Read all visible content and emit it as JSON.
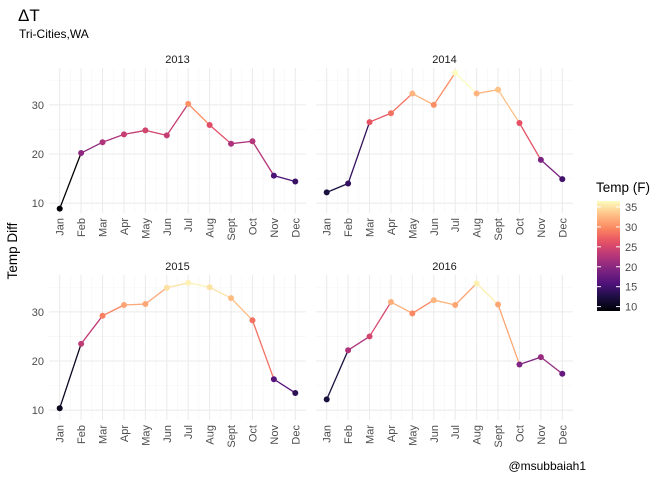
{
  "chart_data": {
    "type": "line",
    "title": "ΔT",
    "subtitle": "Tri-Cities,WA",
    "xlabel": "",
    "ylabel": "Temp Diff",
    "caption": "@msubbaiah1",
    "categories": [
      "Jan",
      "Feb",
      "Mar",
      "Apr",
      "May",
      "Jun",
      "Jul",
      "Aug",
      "Sept",
      "Oct",
      "Nov",
      "Dec"
    ],
    "ylim": [
      8,
      37.5
    ],
    "y_ticks": [
      10,
      20,
      30
    ],
    "grid": true,
    "facet_layout": "2x2",
    "color_scale": {
      "title": "Temp (F)",
      "variable": "y",
      "domain": [
        8.9,
        36.5
      ],
      "breaks": [
        10,
        15,
        20,
        25,
        30,
        35
      ],
      "palette": "magma",
      "legend_position": "right"
    },
    "series": [
      {
        "name": "2013",
        "values": [
          8.9,
          20.2,
          22.4,
          24.0,
          24.8,
          23.8,
          30.2,
          25.9,
          22.1,
          22.6,
          15.6,
          14.4
        ]
      },
      {
        "name": "2014",
        "values": [
          12.2,
          14.0,
          26.5,
          28.3,
          32.3,
          30.0,
          36.5,
          32.3,
          33.1,
          26.3,
          18.8,
          14.9
        ]
      },
      {
        "name": "2015",
        "values": [
          10.4,
          23.5,
          29.2,
          31.4,
          31.6,
          34.9,
          35.9,
          35.0,
          32.8,
          28.3,
          16.3,
          13.5
        ]
      },
      {
        "name": "2016",
        "values": [
          12.2,
          22.2,
          25.0,
          32.0,
          29.7,
          32.4,
          31.4,
          35.8,
          31.5,
          19.3,
          20.8,
          17.4
        ]
      }
    ]
  }
}
